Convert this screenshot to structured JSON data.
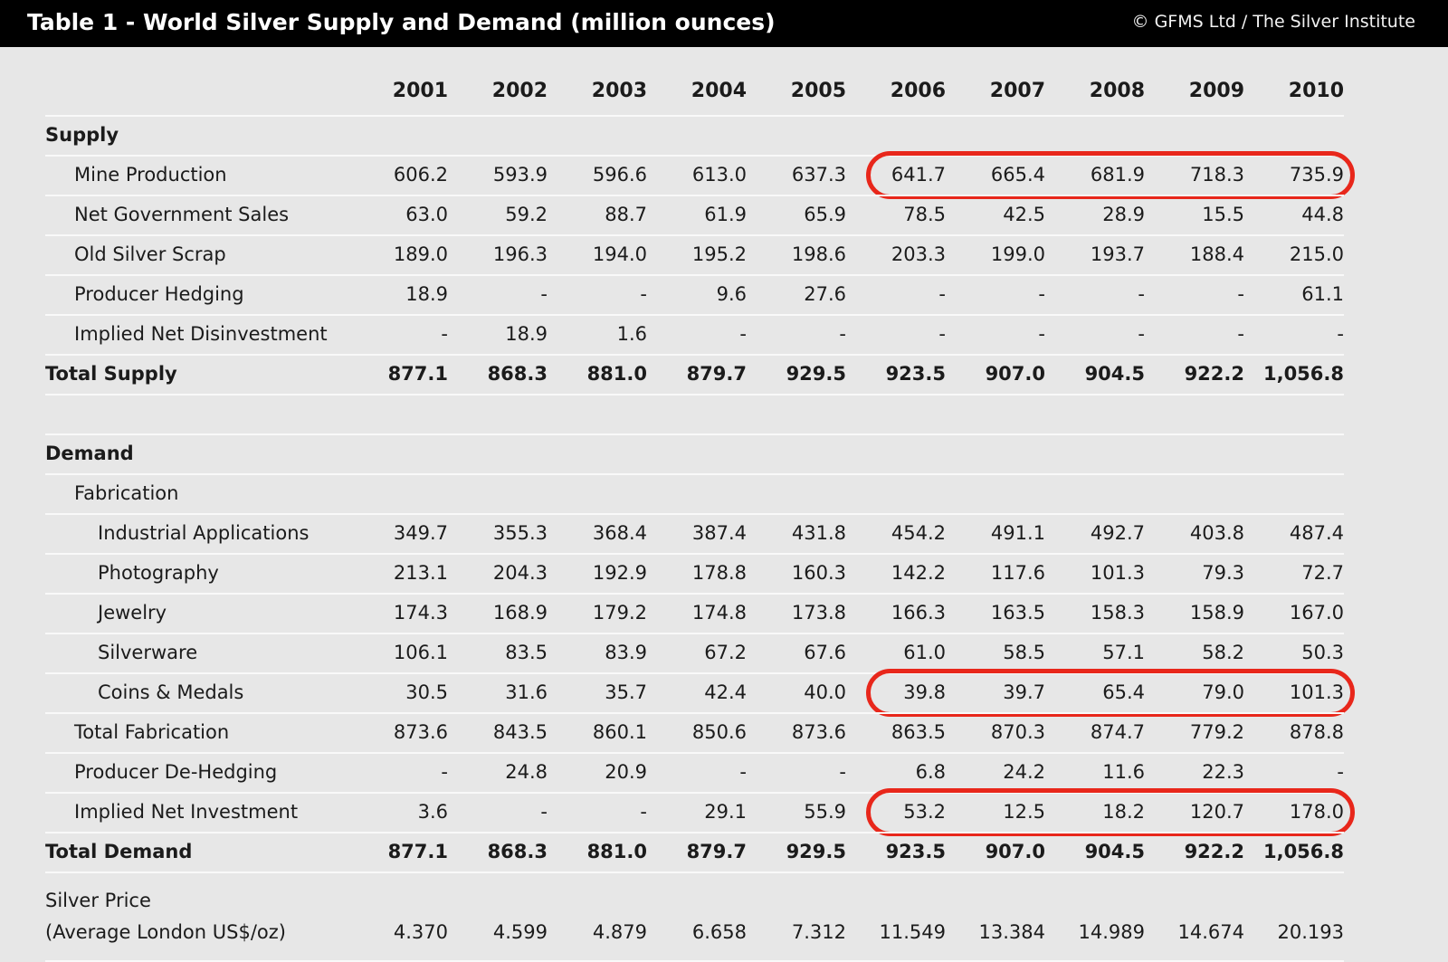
{
  "header": {
    "title": "Table 1 - World Silver Supply and Demand (million ounces)",
    "copyright": "© GFMS Ltd / The Silver Institute"
  },
  "colors": {
    "header_bg": "#000000",
    "header_text": "#ffffff",
    "page_bg": "#e7e7e7",
    "text": "#1b1b1b",
    "separator_line": "#f9f9f9",
    "highlight_red": "#e8271b"
  },
  "chart_data": {
    "type": "table",
    "title": "Table 1 - World Silver Supply and Demand (million ounces)",
    "source": "© GFMS Ltd / The Silver Institute",
    "units": "million ounces",
    "columns": [
      "2001",
      "2002",
      "2003",
      "2004",
      "2005",
      "2006",
      "2007",
      "2008",
      "2009",
      "2010"
    ],
    "rows": [
      {
        "type": "section",
        "label": "Supply",
        "indent": 0,
        "bold": true
      },
      {
        "type": "data",
        "label": "Mine Production",
        "indent": 1,
        "values": [
          "606.2",
          "593.9",
          "596.6",
          "613.0",
          "637.3",
          "641.7",
          "665.4",
          "681.9",
          "718.3",
          "735.9"
        ],
        "highlight": {
          "from": 5,
          "to": 9
        }
      },
      {
        "type": "data",
        "label": "Net Government Sales",
        "indent": 1,
        "values": [
          "63.0",
          "59.2",
          "88.7",
          "61.9",
          "65.9",
          "78.5",
          "42.5",
          "28.9",
          "15.5",
          "44.8"
        ]
      },
      {
        "type": "data",
        "label": "Old Silver Scrap",
        "indent": 1,
        "values": [
          "189.0",
          "196.3",
          "194.0",
          "195.2",
          "198.6",
          "203.3",
          "199.0",
          "193.7",
          "188.4",
          "215.0"
        ]
      },
      {
        "type": "data",
        "label": "Producer Hedging",
        "indent": 1,
        "values": [
          "18.9",
          "-",
          "-",
          "9.6",
          "27.6",
          "-",
          "-",
          "-",
          "-",
          "61.1"
        ]
      },
      {
        "type": "data",
        "label": "Implied Net Disinvestment",
        "indent": 1,
        "values": [
          "-",
          "18.9",
          "1.6",
          "-",
          "-",
          "-",
          "-",
          "-",
          "-",
          "-"
        ]
      },
      {
        "type": "data",
        "label": "Total Supply",
        "indent": 0,
        "bold": true,
        "values": [
          "877.1",
          "868.3",
          "881.0",
          "879.7",
          "929.5",
          "923.5",
          "907.0",
          "904.5",
          "922.2",
          "1,056.8"
        ]
      },
      {
        "type": "spacer"
      },
      {
        "type": "section",
        "label": "Demand",
        "indent": 0,
        "bold": true
      },
      {
        "type": "section",
        "label": "Fabrication",
        "indent": 1,
        "bold": false
      },
      {
        "type": "data",
        "label": "Industrial Applications",
        "indent": 2,
        "values": [
          "349.7",
          "355.3",
          "368.4",
          "387.4",
          "431.8",
          "454.2",
          "491.1",
          "492.7",
          "403.8",
          "487.4"
        ]
      },
      {
        "type": "data",
        "label": "Photography",
        "indent": 2,
        "values": [
          "213.1",
          "204.3",
          "192.9",
          "178.8",
          "160.3",
          "142.2",
          "117.6",
          "101.3",
          "79.3",
          "72.7"
        ]
      },
      {
        "type": "data",
        "label": "Jewelry",
        "indent": 2,
        "values": [
          "174.3",
          "168.9",
          "179.2",
          "174.8",
          "173.8",
          "166.3",
          "163.5",
          "158.3",
          "158.9",
          "167.0"
        ]
      },
      {
        "type": "data",
        "label": "Silverware",
        "indent": 2,
        "values": [
          "106.1",
          "83.5",
          "83.9",
          "67.2",
          "67.6",
          "61.0",
          "58.5",
          "57.1",
          "58.2",
          "50.3"
        ]
      },
      {
        "type": "data",
        "label": "Coins & Medals",
        "indent": 2,
        "values": [
          "30.5",
          "31.6",
          "35.7",
          "42.4",
          "40.0",
          "39.8",
          "39.7",
          "65.4",
          "79.0",
          "101.3"
        ],
        "highlight": {
          "from": 5,
          "to": 9
        }
      },
      {
        "type": "data",
        "label": "Total Fabrication",
        "indent": 1,
        "values": [
          "873.6",
          "843.5",
          "860.1",
          "850.6",
          "873.6",
          "863.5",
          "870.3",
          "874.7",
          "779.2",
          "878.8"
        ]
      },
      {
        "type": "data",
        "label": "Producer De-Hedging",
        "indent": 1,
        "values": [
          "-",
          "24.8",
          "20.9",
          "-",
          "-",
          "6.8",
          "24.2",
          "11.6",
          "22.3",
          "-"
        ]
      },
      {
        "type": "data",
        "label": "Implied Net Investment",
        "indent": 1,
        "values": [
          "3.6",
          "-",
          "-",
          "29.1",
          "55.9",
          "53.2",
          "12.5",
          "18.2",
          "120.7",
          "178.0"
        ],
        "highlight": {
          "from": 5,
          "to": 9
        }
      },
      {
        "type": "data",
        "label": "Total Demand",
        "indent": 0,
        "bold": true,
        "values": [
          "877.1",
          "868.3",
          "881.0",
          "879.7",
          "929.5",
          "923.5",
          "907.0",
          "904.5",
          "922.2",
          "1,056.8"
        ]
      }
    ],
    "price_row": {
      "label_line1": "Silver Price",
      "label_line2": "(Average London US$/oz)",
      "values": [
        "4.370",
        "4.599",
        "4.879",
        "6.658",
        "7.312",
        "11.549",
        "13.384",
        "14.989",
        "14.674",
        "20.193"
      ]
    },
    "highlighted_rows": [
      "Mine Production",
      "Coins & Medals",
      "Implied Net Investment"
    ]
  }
}
